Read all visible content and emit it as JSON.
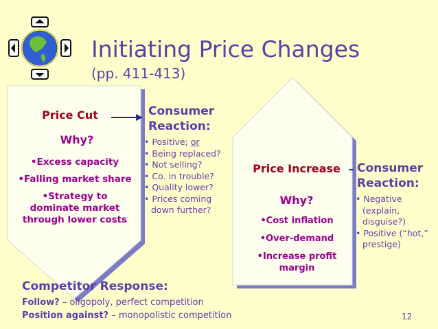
{
  "slide": {
    "title": "Initiating Price Changes",
    "subtitle": "(pp. 411-413)",
    "page_number": "12"
  },
  "price_cut": {
    "heading": "Price Cut",
    "why": "Why?",
    "reasons": [
      "•Excess capacity",
      "•Falling market share",
      "•Strategy to dominate market through lower costs"
    ]
  },
  "consumer_reaction_cut": {
    "heading_line1": "Consumer",
    "heading_line2": "Reaction:",
    "items": [
      {
        "bullet": "•",
        "text": "Positive;",
        "underlined": "or"
      },
      {
        "bullet": "•",
        "text": "Being replaced?"
      },
      {
        "bullet": "•",
        "text": "Not selling?"
      },
      {
        "bullet": "•",
        "text": "Co. in trouble?"
      },
      {
        "bullet": "•",
        "text": "Quality lower?"
      },
      {
        "bullet": "•",
        "text": "Prices coming down further?"
      }
    ]
  },
  "price_increase": {
    "heading": "Price Increase",
    "why": "Why?",
    "reasons": [
      "•Cost inflation",
      "•Over-demand",
      "•Increase profit margin"
    ]
  },
  "consumer_reaction_increase": {
    "heading_line1": "Consumer",
    "heading_line2": "Reaction:",
    "items": [
      {
        "bullet": "•",
        "text": "Negative (explain, disguise?)"
      },
      {
        "bullet": "•",
        "text": "Positive (“hot,” prestige)"
      }
    ]
  },
  "competitor": {
    "heading": "Competitor Response:",
    "line1_label": "Follow?",
    "line1_text": " – oligopoly, perfect competition",
    "line2_label": "Position against?",
    "line2_text": " – monopolistic competition"
  },
  "colors": {
    "background": "#ffffcc",
    "title": "#5a3fa5",
    "heading_red": "#a0001a",
    "magenta": "#9c008f",
    "shape_fill": "#fffff0",
    "shape_shadow": "#7c7cc6"
  },
  "icons": {
    "logo": "globe-with-arrows-icon",
    "connector": "arrow-right-icon"
  }
}
